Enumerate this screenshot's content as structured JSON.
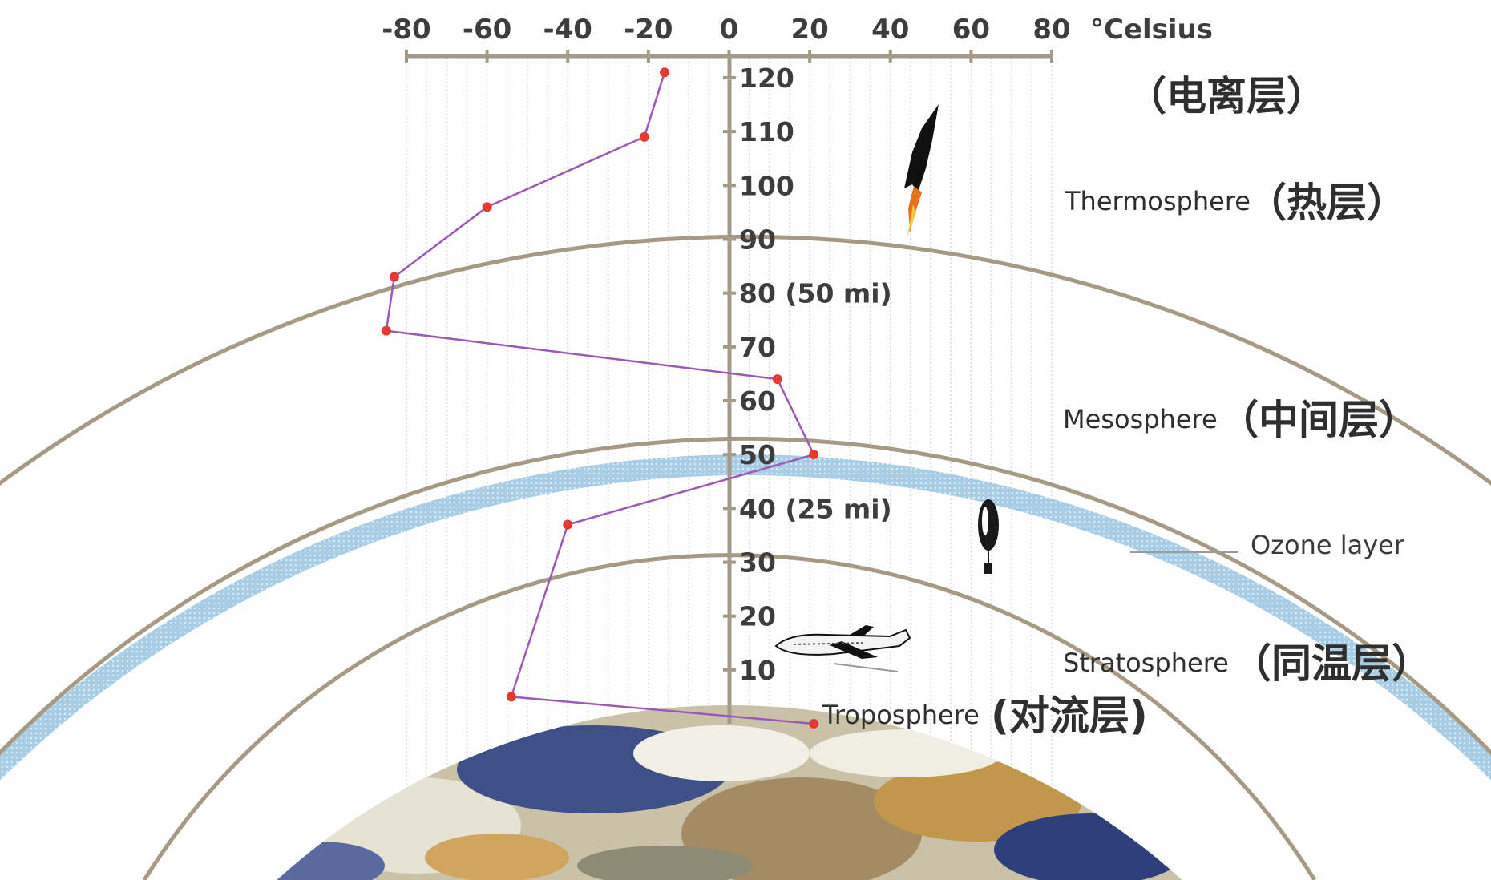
{
  "chart_data": {
    "type": "line",
    "x_unit_label": "°Celsius",
    "x_ticks": [
      "-80",
      "-60",
      "-40",
      "-20",
      "0",
      "20",
      "40",
      "60",
      "80"
    ],
    "altitude_ticks": [
      "10",
      "20",
      "30",
      "40 (25 mi)",
      "50",
      "60",
      "70",
      "80 (50 mi)",
      "90",
      "100",
      "110",
      "120"
    ],
    "xlim": [
      -80,
      80
    ],
    "ylim": [
      0,
      120
    ],
    "series": [
      {
        "color": "#9b59b6",
        "marker_color": "#e53935",
        "points": [
          {
            "temp": 21,
            "alt": 0
          },
          {
            "temp": -54,
            "alt": 5
          },
          {
            "temp": -40,
            "alt": 37
          },
          {
            "temp": 21,
            "alt": 50
          },
          {
            "temp": 12,
            "alt": 64
          },
          {
            "temp": -85,
            "alt": 73
          },
          {
            "temp": -83,
            "alt": 83
          },
          {
            "temp": -60,
            "alt": 96
          },
          {
            "temp": -21,
            "alt": 109
          },
          {
            "temp": -16,
            "alt": 121
          }
        ]
      }
    ],
    "grid": true
  },
  "layers": {
    "ionosphere": {
      "zh": "（电离层）"
    },
    "thermosphere": {
      "en": "Thermosphere",
      "zh": "（热层）"
    },
    "mesosphere": {
      "en": "Mesosphere",
      "zh": "（中间层）"
    },
    "ozone": {
      "en": "Ozone layer"
    },
    "stratosphere": {
      "en": "Stratosphere",
      "zh": "（同温层）"
    },
    "troposphere": {
      "en": "Troposphere",
      "zh": "(对流层)"
    }
  },
  "icons": [
    "rocket-icon",
    "weather-balloon-icon",
    "airplane-icon",
    "earth-icon"
  ],
  "colors": {
    "axis": "#a39a89",
    "shell": "#a69a85",
    "ozone": "#9fc3dc",
    "grid": "#d7d7d2"
  }
}
